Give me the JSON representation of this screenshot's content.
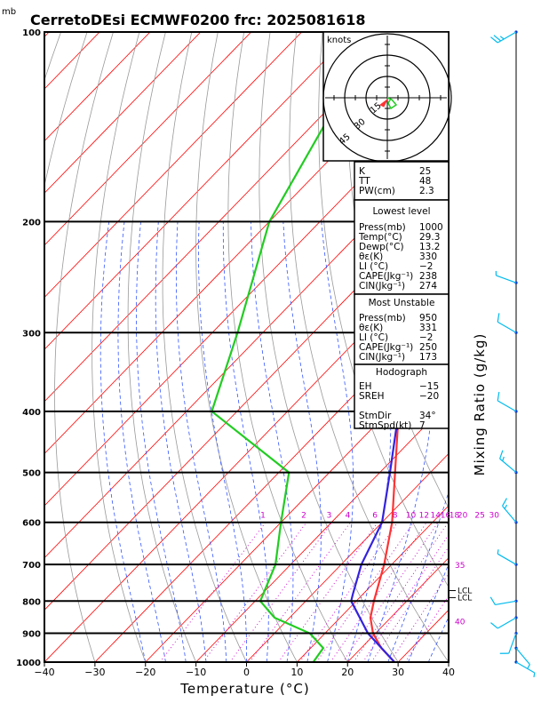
{
  "title": "CerretoDEsi ECMWF0200  frc: 2025081618",
  "pressure_unit": "mb",
  "mixing_ratio_label": "Mixing Ratio  (g/kg)",
  "hodograph": {
    "units": "knots",
    "ring_labels": [
      "15",
      "30",
      "45"
    ]
  },
  "indices": {
    "rows": [
      {
        "label": "K",
        "value": "25"
      },
      {
        "label": "TT",
        "value": "48"
      },
      {
        "label": "PW(cm)",
        "value": "2.3"
      }
    ]
  },
  "lowest_level": {
    "header": "Lowest level",
    "rows": [
      {
        "label": "Press(mb)",
        "value": "1000"
      },
      {
        "label": "Temp(°C)",
        "value": "29.3"
      },
      {
        "label": "Dewp(°C)",
        "value": "13.2"
      },
      {
        "label": "θε(K)",
        "value": "330"
      },
      {
        "label": "LI (°C)",
        "value": "−2"
      },
      {
        "label": "CAPE(Jkg⁻¹)",
        "value": "238"
      },
      {
        "label": "CIN(Jkg⁻¹)",
        "value": "274"
      }
    ]
  },
  "most_unstable": {
    "header": "Most Unstable",
    "rows": [
      {
        "label": "Press(mb)",
        "value": "950"
      },
      {
        "label": "θε(K)",
        "value": "331"
      },
      {
        "label": "LI (°C)",
        "value": "−2"
      },
      {
        "label": "CAPE(Jkg⁻¹)",
        "value": "250"
      },
      {
        "label": "CIN(Jkg⁻¹)",
        "value": "173"
      }
    ]
  },
  "hodograph_box": {
    "header": "Hodograph",
    "rows": [
      {
        "label": "EH",
        "value": "−15"
      },
      {
        "label": "SREH",
        "value": "−20"
      },
      {
        "label": "",
        "value": ""
      },
      {
        "label": "StmDir",
        "value": "34°"
      },
      {
        "label": "StmSpd(kt)",
        "value": "7"
      }
    ]
  },
  "colors": {
    "temperature": "#ff3333",
    "dewpoint": "#22cc22",
    "parcel": "#3322dd",
    "isotherm": "#ff0000",
    "dry_adiabat": "#999999",
    "moist_adiabat": "#3355ff",
    "mixing_ratio": "#cc00cc",
    "wind": "#00bbee"
  },
  "chart_data": {
    "type": "line",
    "xlabel": "Temperature (°C)",
    "ylabel": "",
    "xlim": [
      -40,
      40
    ],
    "ylim": [
      1000,
      100
    ],
    "y_scale": "log",
    "skew": "skew-T",
    "x_ticks": [
      "−40",
      "−30",
      "−20",
      "−10",
      "0",
      "10",
      "20",
      "30",
      "40"
    ],
    "y_ticks": [
      "1000",
      "900",
      "800",
      "700",
      "600",
      "500",
      "400",
      "300",
      "200",
      "100"
    ],
    "lcl_labels": [
      "LCL",
      "LCL"
    ],
    "lcl_pressures": [
      770,
      790
    ],
    "mixing_ratio_ticks": [
      "1",
      "2",
      "3",
      "4",
      "6",
      "8",
      "10",
      "12",
      "14",
      "16",
      "18",
      "20",
      "25",
      "30"
    ],
    "mixing_ratio_extra_labels": [
      "35",
      "40"
    ],
    "series": [
      {
        "points": [
          [
            1000,
            29.3
          ],
          [
            950,
            24
          ],
          [
            900,
            19.5
          ],
          [
            850,
            16
          ],
          [
            800,
            13.5
          ],
          [
            700,
            8.5
          ],
          [
            600,
            2
          ],
          [
            500,
            -7
          ],
          [
            400,
            -18
          ],
          [
            300,
            -31
          ],
          [
            250,
            -39
          ],
          [
            200,
            -48
          ],
          [
            150,
            -58
          ],
          [
            100,
            -64
          ]
        ]
      },
      {
        "points": [
          [
            1000,
            13.2
          ],
          [
            950,
            12.5
          ],
          [
            900,
            7
          ],
          [
            850,
            -3
          ],
          [
            800,
            -9
          ],
          [
            700,
            -13
          ],
          [
            600,
            -20
          ],
          [
            500,
            -28
          ],
          [
            400,
            -55
          ],
          [
            300,
            -65
          ],
          [
            200,
            -80
          ],
          [
            100,
            -95
          ]
        ]
      },
      {
        "points": [
          [
            1000,
            29.3
          ],
          [
            900,
            18.5
          ],
          [
            800,
            9
          ],
          [
            780,
            8
          ],
          [
            700,
            4
          ],
          [
            600,
            0
          ],
          [
            500,
            -8
          ],
          [
            400,
            -18
          ],
          [
            300,
            -32
          ],
          [
            200,
            -52
          ],
          [
            150,
            -64
          ],
          [
            100,
            -80
          ]
        ]
      }
    ]
  },
  "wind_barbs": [
    {
      "p": 1000,
      "dir": 120,
      "spd": 5
    },
    {
      "p": 950,
      "dir": 140,
      "spd": 5
    },
    {
      "p": 900,
      "dir": 200,
      "spd": 10
    },
    {
      "p": 850,
      "dir": 240,
      "spd": 10
    },
    {
      "p": 800,
      "dir": 260,
      "spd": 10
    },
    {
      "p": 700,
      "dir": 300,
      "spd": 5
    },
    {
      "p": 600,
      "dir": 320,
      "spd": 15
    },
    {
      "p": 500,
      "dir": 310,
      "spd": 15
    },
    {
      "p": 400,
      "dir": 300,
      "spd": 10
    },
    {
      "p": 300,
      "dir": 300,
      "spd": 10
    },
    {
      "p": 250,
      "dir": 290,
      "spd": 5
    },
    {
      "p": 100,
      "dir": 240,
      "spd": 25
    }
  ]
}
